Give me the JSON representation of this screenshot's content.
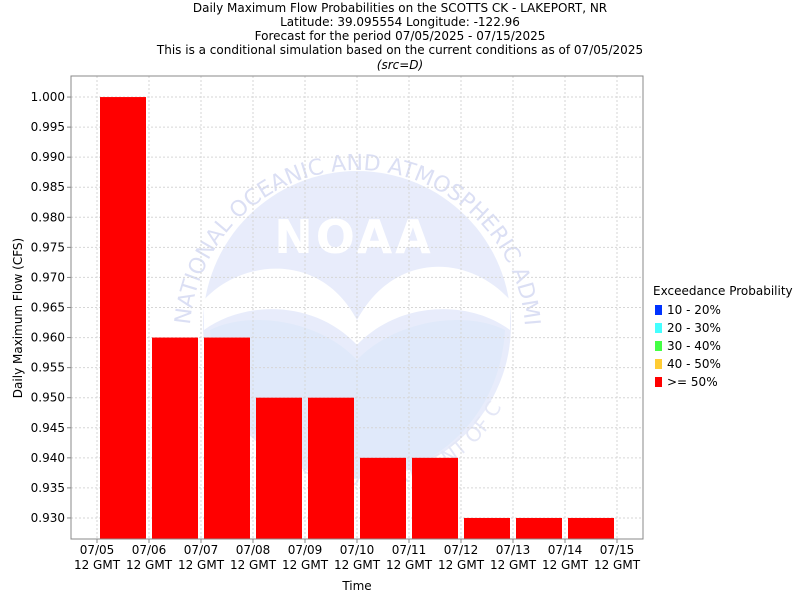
{
  "chart_data": {
    "type": "bar",
    "title_lines": [
      "Daily Maximum Flow Probabilities on the SCOTTS CK - LAKEPORT, NR",
      "Latitude: 39.095554 Longitude: -122.96",
      "Forecast for the period 07/05/2025 - 07/15/2025",
      "This is a conditional simulation based on the current conditions as of 07/05/2025"
    ],
    "subtitle": "(src=D)",
    "xlabel": "Time",
    "ylabel": "Daily Maximum Flow (CFS)",
    "ylim": [
      0.9265,
      1.0035
    ],
    "y_ticks": [
      0.93,
      0.935,
      0.94,
      0.945,
      0.95,
      0.955,
      0.96,
      0.965,
      0.97,
      0.975,
      0.98,
      0.985,
      0.99,
      0.995,
      1.0
    ],
    "x_ticks": [
      {
        "date": "07/05",
        "time": "12 GMT"
      },
      {
        "date": "07/06",
        "time": "12 GMT"
      },
      {
        "date": "07/07",
        "time": "12 GMT"
      },
      {
        "date": "07/08",
        "time": "12 GMT"
      },
      {
        "date": "07/09",
        "time": "12 GMT"
      },
      {
        "date": "07/10",
        "time": "12 GMT"
      },
      {
        "date": "07/11",
        "time": "12 GMT"
      },
      {
        "date": "07/12",
        "time": "12 GMT"
      },
      {
        "date": "07/13",
        "time": "12 GMT"
      },
      {
        "date": "07/14",
        "time": "12 GMT"
      },
      {
        "date": "07/15",
        "time": "12 GMT"
      }
    ],
    "series": [
      {
        "name": ">= 50%",
        "color": "#ff0000",
        "values": [
          1.0,
          0.96,
          0.96,
          0.95,
          0.95,
          0.94,
          0.94,
          0.93,
          0.93,
          0.93
        ]
      }
    ],
    "grid": true,
    "legend": {
      "placement": "right",
      "title": "Exceedance Probability",
      "items": [
        {
          "label": "10 - 20%",
          "color": "#0033ff"
        },
        {
          "label": "20 - 30%",
          "color": "#44ffff"
        },
        {
          "label": "30 - 40%",
          "color": "#44ff44"
        },
        {
          "label": "40 - 50%",
          "color": "#ffcc33"
        },
        {
          "label": ">= 50%",
          "color": "#ff0000"
        }
      ]
    }
  },
  "watermark": {
    "logo_text": "NOAA",
    "arc_text_top": "NATIONAL OCEANIC AND ATMOSPHERIC ADMINISTRATION",
    "arc_text_bottom": "U.S. DEPARTMENT OF COMMERCE"
  }
}
